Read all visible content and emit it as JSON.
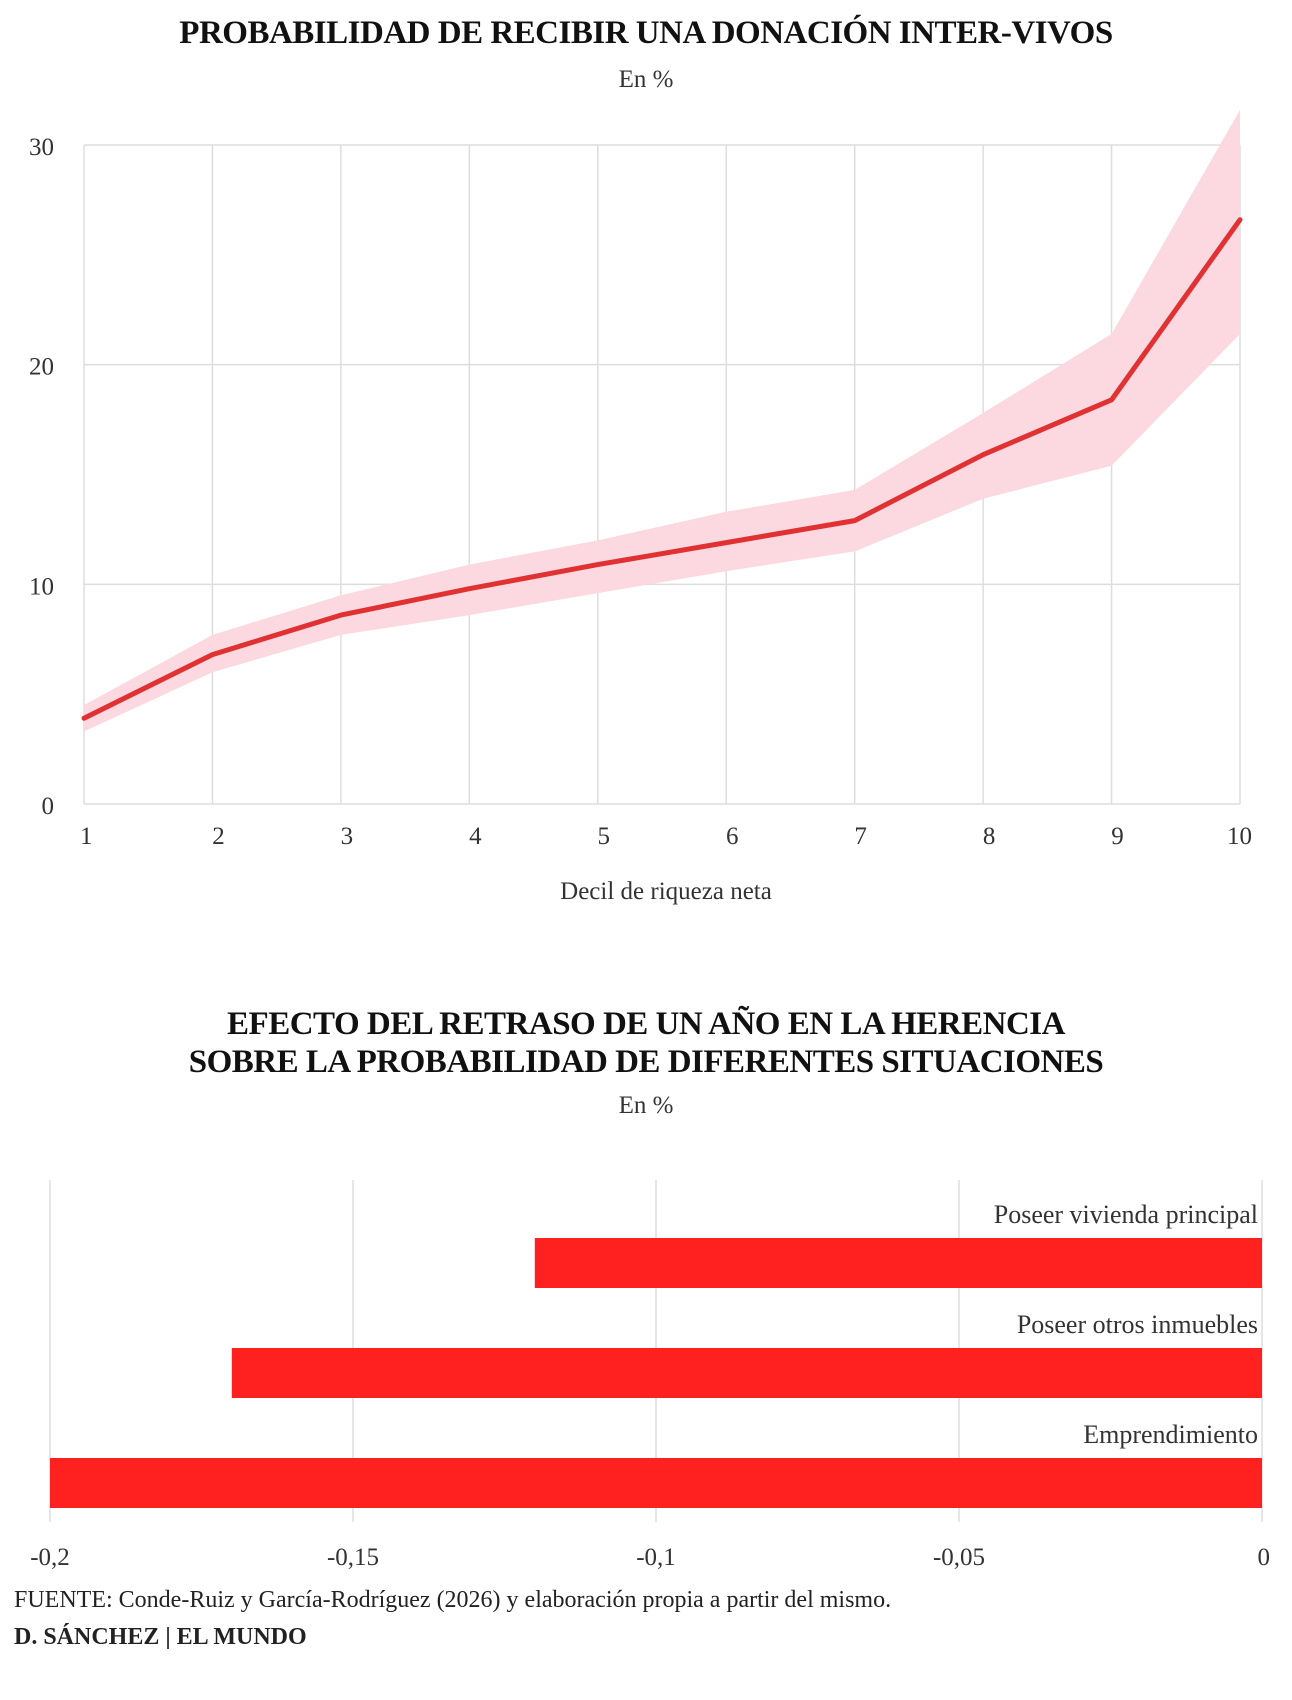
{
  "chart_data": [
    {
      "type": "line",
      "title": "PROBABILIDAD DE RECIBIR UNA DONACIÓN INTER-VIVOS",
      "subtitle": "En %",
      "xlabel": "Decil de riqueza neta",
      "ylabel": "",
      "x": [
        1,
        2,
        3,
        4,
        5,
        6,
        7,
        8,
        9,
        10
      ],
      "xticks": [
        "1",
        "2",
        "3",
        "4",
        "5",
        "6",
        "7",
        "8",
        "9",
        "10"
      ],
      "yticks": [
        "0",
        "10",
        "20",
        "30"
      ],
      "ylim": [
        0,
        30
      ],
      "series": [
        {
          "values": [
            3.9,
            6.8,
            8.6,
            9.8,
            10.9,
            11.9,
            12.9,
            15.9,
            18.4,
            26.6
          ],
          "lower": [
            3.3,
            6.0,
            7.7,
            8.6,
            9.6,
            10.6,
            11.5,
            13.9,
            15.4,
            21.4
          ],
          "upper": [
            4.5,
            7.7,
            9.5,
            10.9,
            12.0,
            13.3,
            14.3,
            17.8,
            21.4,
            31.6
          ]
        }
      ],
      "grid": true,
      "colors": {
        "line": "#e03232",
        "band": "#fcd8e0",
        "grid": "#dddddd"
      }
    },
    {
      "type": "bar",
      "orientation": "horizontal",
      "title_lines": [
        "EFECTO DEL RETRASO DE UN AÑO EN LA HERENCIA",
        "SOBRE LA PROBABILIDAD DE DIFERENTES SITUACIONES"
      ],
      "subtitle": "En %",
      "categories": [
        "Poseer vivienda principal",
        "Poseer otros inmuebles",
        "Emprendimiento"
      ],
      "values": [
        -0.12,
        -0.17,
        -0.2
      ],
      "xlim": [
        -0.2,
        0
      ],
      "xticks": [
        "-0,2",
        "-0,15",
        "-0,1",
        "-0,05",
        "0"
      ],
      "xtick_values": [
        -0.2,
        -0.15,
        -0.1,
        -0.05,
        0
      ],
      "grid": true,
      "colors": {
        "bar": "#ff2020",
        "grid": "#dddddd"
      }
    }
  ],
  "footer": {
    "source_label": "FUENTE:",
    "source_text": " Conde-Ruiz y García-Rodríguez (2026) y elaboración propia a partir del mismo.",
    "credit": "D. SÁNCHEZ | EL MUNDO"
  }
}
